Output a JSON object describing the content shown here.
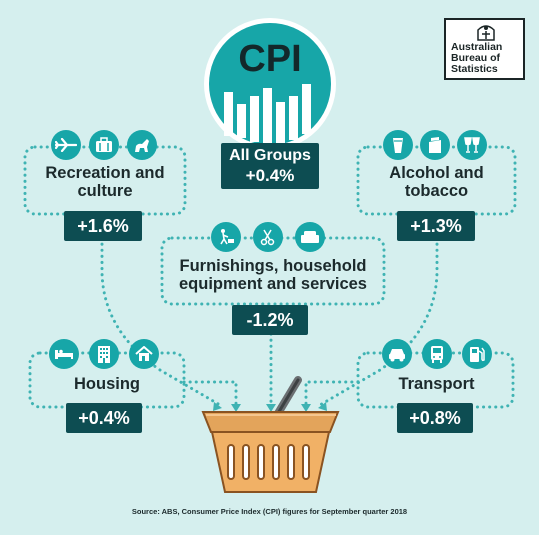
{
  "cpi": {
    "logo_text": "CPI",
    "all_groups_label": "All Groups",
    "all_groups_value": "+0.4%"
  },
  "abs_logo": {
    "line1": "Australian",
    "line2": "Bureau of",
    "line3": "Statistics"
  },
  "categories": [
    {
      "title_line1": "Recreation and",
      "title_line2": "culture",
      "value": "+1.6%",
      "icons": [
        "plane-icon",
        "suitcase-icon",
        "dog-icon"
      ]
    },
    {
      "title_line1": "Alcohol and",
      "title_line2": "tobacco",
      "value": "+1.3%",
      "icons": [
        "beer-glass-icon",
        "cigarette-pack-icon",
        "wine-glasses-icon"
      ]
    },
    {
      "title_line1": "Furnishings, household",
      "title_line2": "equipment and services",
      "value": "-1.2%",
      "icons": [
        "lawn-mower-icon",
        "scissors-comb-icon",
        "armchair-icon"
      ]
    },
    {
      "title_line1": "Housing",
      "title_line2": "",
      "value": "+0.4%",
      "icons": [
        "bed-icon",
        "apartment-icon",
        "house-icon"
      ]
    },
    {
      "title_line1": "Transport",
      "title_line2": "",
      "value": "+0.8%",
      "icons": [
        "car-icon",
        "bus-icon",
        "fuel-pump-icon"
      ]
    }
  ],
  "source": "Source: ABS, Consumer Price Index (CPI) figures for September quarter 2018",
  "colors": {
    "background": "#d5efee",
    "teal": "#17a6a8",
    "dark_teal": "#0d4d52",
    "basket_orange": "#e3a45b"
  }
}
